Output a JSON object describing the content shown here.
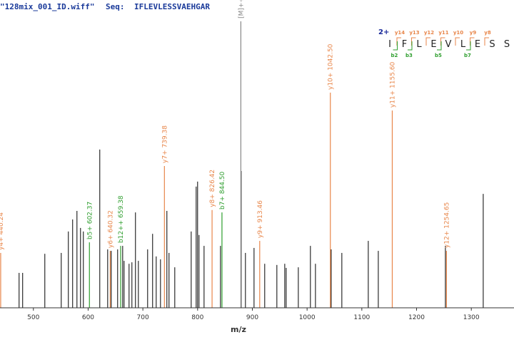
{
  "chart_data": {
    "type": "spectrum",
    "title": "\"128mix_001_ID.wiff\"",
    "seq_label": "Seq:",
    "sequence": "IFLEVLESSVAEHGAR",
    "x_label": "m/z",
    "xlim": [
      439,
      1378
    ],
    "xticks": [
      500,
      600,
      700,
      800,
      900,
      1000,
      1100,
      1200,
      1300
    ],
    "ylim": [
      0,
      100
    ],
    "series": [
      {
        "color": "#000000",
        "x": [
          473.9,
          480.4,
          520.9,
          550.9,
          563.9,
          571.7,
          579.6,
          586.1,
          591.3,
          621.3,
          635.7,
          642.2,
          653.9,
          663.1,
          665.7,
          674.8,
          680.0,
          686.5,
          691.8,
          708.7,
          717.8,
          724.4,
          732.2,
          743.9,
          747.8,
          758.3,
          788.3,
          797.4,
          800.0,
          802.6,
          811.8,
          841.8,
          879.6,
          887.4,
          903.1,
          922.6,
          944.8,
          959.2,
          961.8,
          984.0,
          1006.1,
          1015.3,
          1044.0,
          1063.5,
          1111.8,
          1130.1,
          1252.7,
          1321.8
        ],
        "values": [
          11.9,
          11.9,
          18.4,
          18.7,
          26.0,
          30.1,
          33.0,
          27.2,
          26.0,
          53.9,
          19.9,
          19.4,
          19.9,
          21.1,
          16.0,
          15.0,
          15.5,
          32.5,
          16.0,
          19.9,
          25.2,
          17.5,
          16.5,
          33.0,
          18.7,
          13.8,
          26.0,
          41.3,
          43.0,
          24.8,
          21.1,
          21.1,
          46.6,
          18.7,
          20.4,
          15.0,
          14.6,
          15.0,
          13.6,
          13.8,
          21.1,
          15.0,
          19.9,
          18.7,
          22.8,
          19.4,
          21.1,
          38.8
        ]
      }
    ],
    "annotations": [
      {
        "x": 440.24,
        "value": 18.7,
        "label": "y4+ 440.24",
        "color": "#e8864a"
      },
      {
        "x": 602.37,
        "value": 22.3,
        "label": "b5+ 602.37",
        "color": "#2e9e2e"
      },
      {
        "x": 640.32,
        "value": 19.4,
        "label": "y6+ 640.32",
        "color": "#e8864a"
      },
      {
        "x": 659.38,
        "value": 21.1,
        "label": "b12++ 659.38",
        "color": "#2e9e2e"
      },
      {
        "x": 739.38,
        "value": 48.3,
        "label": "y7+ 739.38",
        "color": "#e8864a"
      },
      {
        "x": 826.42,
        "value": 33.3,
        "label": "y8+ 826.42",
        "color": "#e8864a"
      },
      {
        "x": 844.5,
        "value": 32.5,
        "label": "b7+ 844.50",
        "color": "#2e9e2e"
      },
      {
        "x": 878.98,
        "value": 97.6,
        "label": "[M]++ 878.98",
        "color": "#888888"
      },
      {
        "x": 913.46,
        "value": 22.8,
        "label": "y9+ 913.46",
        "color": "#e8864a"
      },
      {
        "x": 1042.5,
        "value": 73.3,
        "label": "y10+ 1042.50",
        "color": "#e8864a"
      },
      {
        "x": 1155.6,
        "value": 67.2,
        "label": "y11+ 1155.60",
        "color": "#e8864a"
      },
      {
        "x": 1254.65,
        "value": 19.4,
        "label": "y12+ 1254.65",
        "color": "#e8864a"
      }
    ],
    "fragment_map": {
      "charge": "2+",
      "residues": [
        "I",
        "F",
        "L",
        "E",
        "V",
        "L",
        "E",
        "S",
        "S"
      ],
      "y_ions": [
        "y14",
        "y13",
        "y12",
        "y11",
        "y10",
        "y9",
        "y8"
      ],
      "b_ions": [
        "b2",
        "b3",
        "b5",
        "b7"
      ]
    }
  }
}
